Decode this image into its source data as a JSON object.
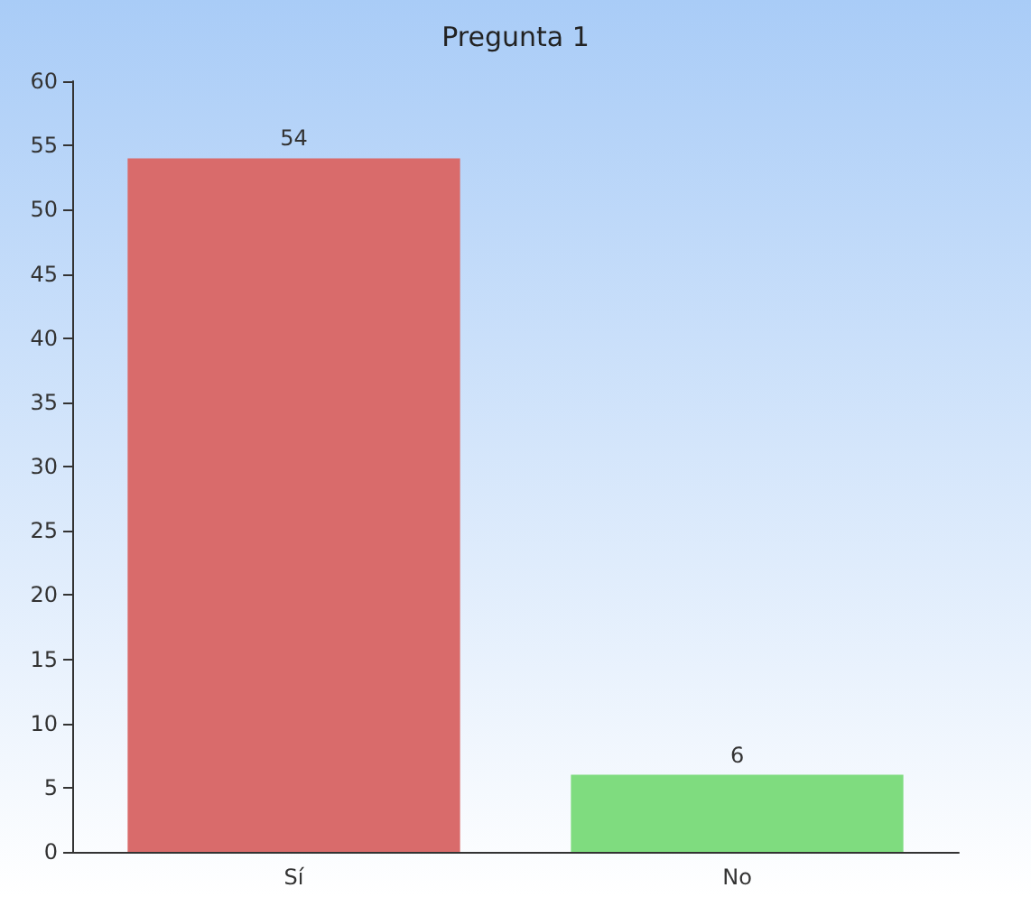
{
  "chart_data": {
    "type": "bar",
    "title": "Pregunta 1",
    "categories": [
      "Sí",
      "No"
    ],
    "values": [
      54,
      6
    ],
    "colors": [
      "#d96b6b",
      "#7fdc7f"
    ],
    "ylim": [
      0,
      60
    ],
    "yticks": [
      0,
      5,
      10,
      15,
      20,
      25,
      30,
      35,
      40,
      45,
      50,
      55,
      60
    ],
    "data_labels": true,
    "grid": false
  }
}
